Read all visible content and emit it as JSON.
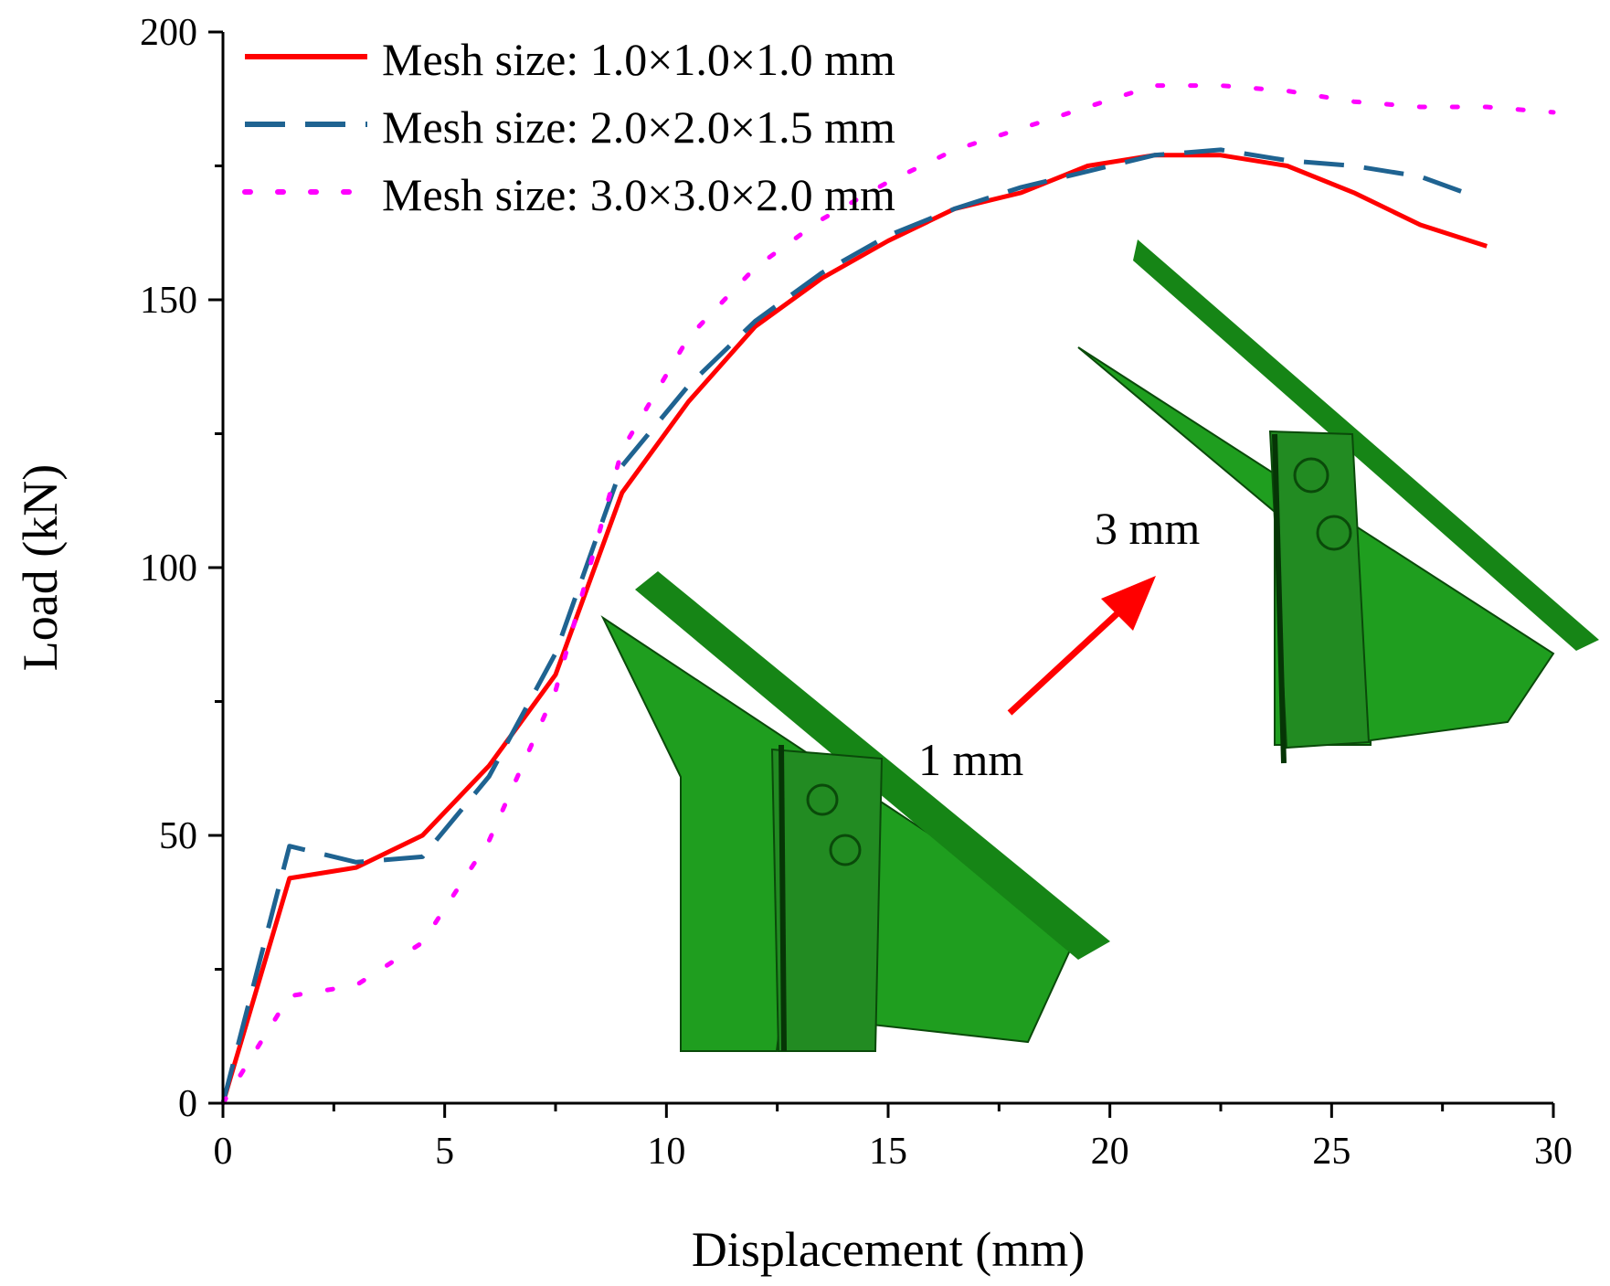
{
  "chart_data": {
    "type": "line",
    "xlabel": "Displacement (mm)",
    "ylabel": "Load (kN)",
    "xlim": [
      0,
      30
    ],
    "ylim": [
      0,
      200
    ],
    "xticks": [
      "0",
      "5",
      "10",
      "15",
      "20",
      "25",
      "30"
    ],
    "yticks": [
      "0",
      "50",
      "100",
      "150",
      "200"
    ],
    "legend_position": "top-left",
    "series": [
      {
        "name": "Mesh size: 1.0×1.0×1.0 mm",
        "color": "#ff0000",
        "style": "solid",
        "x": [
          0,
          1.5,
          3,
          4.5,
          6,
          7.5,
          9,
          10.5,
          12,
          13.5,
          15,
          16.5,
          18,
          19.5,
          21,
          22.5,
          24,
          25.5,
          27,
          28.5
        ],
        "y": [
          0,
          42,
          44,
          50,
          63,
          80,
          114,
          131,
          145,
          154,
          161,
          167,
          170,
          175,
          177,
          177,
          175,
          170,
          164,
          160
        ]
      },
      {
        "name": "Mesh size: 2.0×2.0×1.5 mm",
        "color": "#1f6391",
        "style": "dashed",
        "x": [
          0,
          1.5,
          3,
          4.5,
          6,
          7.5,
          9,
          10.5,
          12,
          13.5,
          15,
          16.5,
          18,
          19.5,
          21,
          22.5,
          24,
          25.5,
          27,
          28
        ],
        "y": [
          0,
          48,
          45,
          46,
          61,
          84,
          119,
          134,
          146,
          155,
          162,
          167,
          171,
          174,
          177,
          178,
          176,
          175,
          173,
          170
        ]
      },
      {
        "name": "Mesh size: 3.0×3.0×2.0 mm",
        "color": "#ff00ff",
        "style": "dotted",
        "x": [
          0,
          1.5,
          3,
          4.5,
          6,
          7.5,
          9,
          10.5,
          12,
          13.5,
          15,
          16.5,
          18,
          19.5,
          21,
          22.5,
          24,
          25.5,
          27,
          28.5,
          30
        ],
        "y": [
          0,
          20,
          22,
          30,
          49,
          77,
          122,
          143,
          156,
          165,
          172,
          178,
          182,
          186,
          190,
          190,
          189,
          187,
          186,
          186,
          185
        ]
      }
    ],
    "annotations": {
      "left_label": "1 mm",
      "right_label": "3 mm",
      "arrow_color": "#ff0000",
      "mesh_color": "#1f9e1f"
    }
  }
}
